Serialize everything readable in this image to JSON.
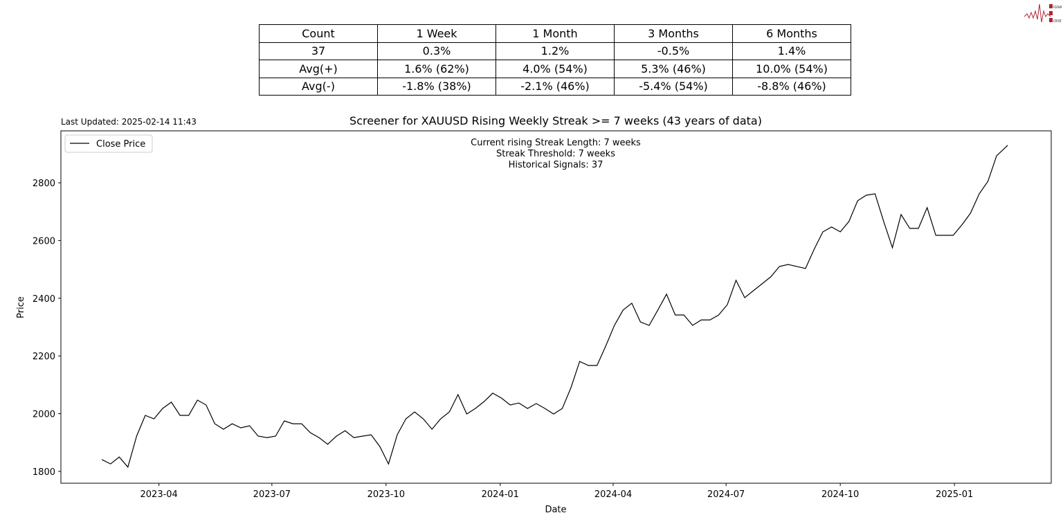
{
  "logo": {
    "text": "SIGNAL 2 NOISE",
    "color": "#b22234"
  },
  "stats_table": {
    "header": [
      "Count",
      "1 Week",
      "1 Month",
      "3 Months",
      "6 Months"
    ],
    "rows": [
      [
        "37",
        "0.3%",
        "1.2%",
        "-0.5%",
        "1.4%"
      ],
      [
        "Avg(+)",
        "1.6% (62%)",
        "4.0% (54%)",
        "5.3% (46%)",
        "10.0% (54%)"
      ],
      [
        "Avg(-)",
        "-1.8% (38%)",
        "-2.1% (46%)",
        "-5.4% (54%)",
        "-8.8% (46%)"
      ]
    ]
  },
  "last_updated": "Last Updated: 2025-02-14 11:43",
  "chart_data": {
    "type": "line",
    "title": "Screener for XAUUSD Rising Weekly Streak >= 7 weeks (43 years of data)",
    "xlabel": "Date",
    "ylabel": "Price",
    "xlim": [
      "2023-01-12",
      "2025-03-20"
    ],
    "ylim": [
      1759,
      2980
    ],
    "grid": false,
    "legend": "top-left",
    "line_color": "#000000",
    "annotation": [
      "Current rising Streak Length: 7 weeks",
      "Streak Threshold: 7 weeks",
      "Historical Signals: 37"
    ],
    "x_ticks": [
      "2023-04",
      "2023-07",
      "2023-10",
      "2024-01",
      "2024-04",
      "2024-07",
      "2024-10",
      "2025-01"
    ],
    "y_ticks": [
      1800,
      2000,
      2200,
      2400,
      2600,
      2800
    ],
    "series": [
      {
        "name": "Close Price",
        "x": [
          "2023-02-14",
          "2023-02-21",
          "2023-02-28",
          "2023-03-07",
          "2023-03-14",
          "2023-03-21",
          "2023-03-28",
          "2023-04-04",
          "2023-04-11",
          "2023-04-18",
          "2023-04-25",
          "2023-05-02",
          "2023-05-09",
          "2023-05-16",
          "2023-05-23",
          "2023-05-30",
          "2023-06-06",
          "2023-06-13",
          "2023-06-20",
          "2023-06-27",
          "2023-07-04",
          "2023-07-11",
          "2023-07-18",
          "2023-07-25",
          "2023-08-01",
          "2023-08-08",
          "2023-08-15",
          "2023-08-22",
          "2023-08-29",
          "2023-09-05",
          "2023-09-12",
          "2023-09-19",
          "2023-09-26",
          "2023-10-03",
          "2023-10-10",
          "2023-10-17",
          "2023-10-24",
          "2023-10-31",
          "2023-11-07",
          "2023-11-14",
          "2023-11-21",
          "2023-11-28",
          "2023-12-05",
          "2023-12-12",
          "2023-12-19",
          "2023-12-26",
          "2024-01-02",
          "2024-01-09",
          "2024-01-16",
          "2024-01-23",
          "2024-01-30",
          "2024-02-06",
          "2024-02-13",
          "2024-02-20",
          "2024-02-27",
          "2024-03-05",
          "2024-03-12",
          "2024-03-19",
          "2024-03-26",
          "2024-04-02",
          "2024-04-09",
          "2024-04-16",
          "2024-04-23",
          "2024-04-30",
          "2024-05-07",
          "2024-05-14",
          "2024-05-21",
          "2024-05-28",
          "2024-06-04",
          "2024-06-11",
          "2024-06-18",
          "2024-06-25",
          "2024-07-02",
          "2024-07-09",
          "2024-07-16",
          "2024-07-23",
          "2024-07-30",
          "2024-08-06",
          "2024-08-13",
          "2024-08-20",
          "2024-08-27",
          "2024-09-03",
          "2024-09-10",
          "2024-09-17",
          "2024-09-24",
          "2024-10-01",
          "2024-10-08",
          "2024-10-15",
          "2024-10-22",
          "2024-10-29",
          "2024-11-05",
          "2024-11-12",
          "2024-11-19",
          "2024-11-26",
          "2024-12-03",
          "2024-12-10",
          "2024-12-17",
          "2024-12-24",
          "2024-12-31",
          "2025-01-07",
          "2025-01-14",
          "2025-01-21",
          "2025-01-28",
          "2025-02-04",
          "2025-02-13"
        ],
        "values": [
          1841,
          1826,
          1850,
          1815,
          1922,
          1994,
          1982,
          2018,
          2040,
          1994,
          1994,
          2047,
          2030,
          1965,
          1946,
          1965,
          1951,
          1958,
          1922,
          1917,
          1922,
          1975,
          1965,
          1965,
          1934,
          1917,
          1894,
          1922,
          1941,
          1917,
          1922,
          1927,
          1886,
          1826,
          1927,
          1982,
          2006,
          1982,
          1946,
          1982,
          2006,
          2066,
          1999,
          2018,
          2042,
          2071,
          2054,
          2030,
          2037,
          2018,
          2035,
          2018,
          1999,
          2018,
          2090,
          2181,
          2167,
          2167,
          2234,
          2306,
          2359,
          2383,
          2318,
          2306,
          2359,
          2414,
          2342,
          2342,
          2306,
          2325,
          2325,
          2342,
          2378,
          2462,
          2402,
          2426,
          2450,
          2474,
          2510,
          2517,
          2510,
          2503,
          2570,
          2630,
          2647,
          2630,
          2666,
          2738,
          2757,
          2762,
          2666,
          2575,
          2690,
          2642,
          2642,
          2714,
          2618,
          2618,
          2618,
          2654,
          2695,
          2762,
          2805,
          2894,
          2930
        ]
      }
    ]
  }
}
